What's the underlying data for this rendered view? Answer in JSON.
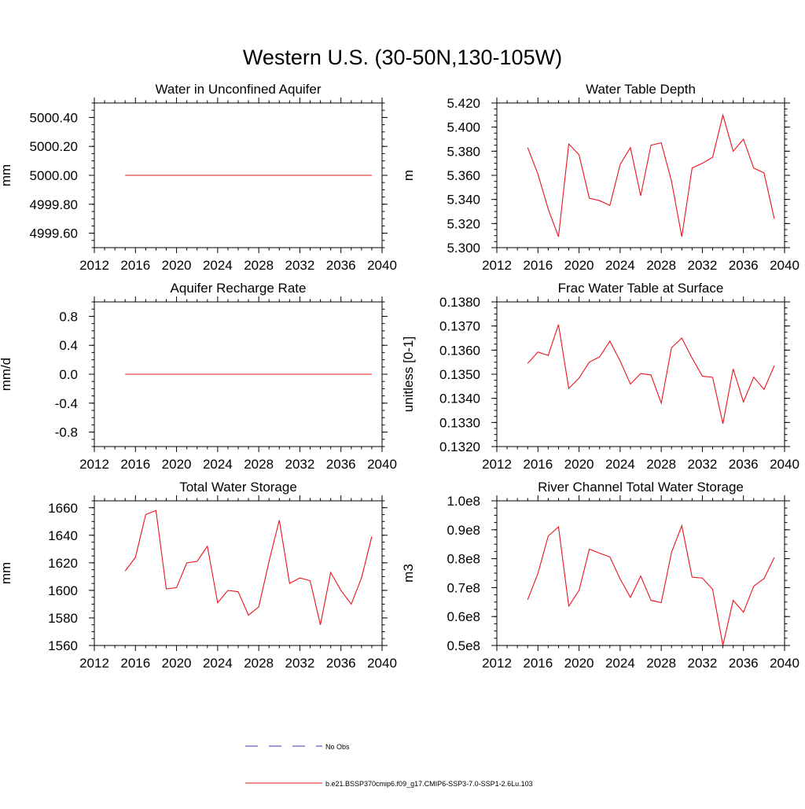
{
  "page_title": "Western U.S. (30-50N,130-105W)",
  "legend": {
    "placement": "bottom-center",
    "entries": [
      {
        "label": "No Obs",
        "color": "#3a3aa8",
        "style": "dashed"
      },
      {
        "label": "b.e21.BSSP370cmip6.f09_g17.CMIP6-SSP3-7.0-SSP1-2.6Lu.103",
        "color": "#e8141e",
        "style": "solid"
      }
    ]
  },
  "chart_data": [
    {
      "type": "line",
      "title": "Water in Unconfined Aquifer",
      "xlabel": "",
      "ylabel": "mm",
      "xlim": [
        2012,
        2040
      ],
      "ylim": [
        4999.5,
        5000.5
      ],
      "xticks": [
        2012,
        2016,
        2020,
        2024,
        2028,
        2032,
        2036,
        2040
      ],
      "xtick_labels": [
        "2012",
        "2016",
        "2020",
        "2024",
        "2028",
        "2032",
        "2036",
        "2040"
      ],
      "yticks": [
        4999.6,
        4999.8,
        5000.0,
        5000.2,
        5000.4
      ],
      "ytick_labels": [
        "4999.60",
        "4999.80",
        "5000.00",
        "5000.20",
        "5000.40"
      ],
      "grid": false,
      "series": [
        {
          "color": "#e8141e",
          "x": [
            2015,
            2016,
            2017,
            2018,
            2019,
            2020,
            2021,
            2022,
            2023,
            2024,
            2025,
            2026,
            2027,
            2028,
            2029,
            2030,
            2031,
            2032,
            2033,
            2034,
            2035,
            2036,
            2037,
            2038,
            2039
          ],
          "values": [
            5000,
            5000,
            5000,
            5000,
            5000,
            5000,
            5000,
            5000,
            5000,
            5000,
            5000,
            5000,
            5000,
            5000,
            5000,
            5000,
            5000,
            5000,
            5000,
            5000,
            5000,
            5000,
            5000,
            5000,
            5000
          ]
        }
      ]
    },
    {
      "type": "line",
      "title": "Water Table Depth",
      "xlabel": "",
      "ylabel": "m",
      "xlim": [
        2012,
        2040
      ],
      "ylim": [
        5.3,
        5.42
      ],
      "xticks": [
        2012,
        2016,
        2020,
        2024,
        2028,
        2032,
        2036,
        2040
      ],
      "xtick_labels": [
        "2012",
        "2016",
        "2020",
        "2024",
        "2028",
        "2032",
        "2036",
        "2040"
      ],
      "yticks": [
        5.3,
        5.32,
        5.34,
        5.36,
        5.38,
        5.4,
        5.42
      ],
      "ytick_labels": [
        "5.300",
        "5.320",
        "5.340",
        "5.360",
        "5.380",
        "5.400",
        "5.420"
      ],
      "grid": false,
      "series": [
        {
          "color": "#e8141e",
          "x": [
            2015,
            2016,
            2017,
            2018,
            2019,
            2020,
            2021,
            2022,
            2023,
            2024,
            2025,
            2026,
            2027,
            2028,
            2029,
            2030,
            2031,
            2032,
            2033,
            2034,
            2035,
            2036,
            2037,
            2038,
            2039
          ],
          "values": [
            5.383,
            5.361,
            5.332,
            5.309,
            5.386,
            5.377,
            5.341,
            5.339,
            5.335,
            5.369,
            5.383,
            5.343,
            5.385,
            5.387,
            5.355,
            5.309,
            5.366,
            5.37,
            5.375,
            5.41,
            5.38,
            5.39,
            5.366,
            5.362,
            5.324
          ]
        }
      ]
    },
    {
      "type": "line",
      "title": "Aquifer Recharge Rate",
      "xlabel": "",
      "ylabel": "mm/d",
      "xlim": [
        2012,
        2040
      ],
      "ylim": [
        -1.0,
        1.0
      ],
      "xticks": [
        2012,
        2016,
        2020,
        2024,
        2028,
        2032,
        2036,
        2040
      ],
      "xtick_labels": [
        "2012",
        "2016",
        "2020",
        "2024",
        "2028",
        "2032",
        "2036",
        "2040"
      ],
      "yticks": [
        -0.8,
        -0.4,
        0.0,
        0.4,
        0.8
      ],
      "ytick_labels": [
        "-0.8",
        "-0.4",
        "0.0",
        "0.4",
        "0.8"
      ],
      "grid": false,
      "series": [
        {
          "color": "#e8141e",
          "x": [
            2015,
            2016,
            2017,
            2018,
            2019,
            2020,
            2021,
            2022,
            2023,
            2024,
            2025,
            2026,
            2027,
            2028,
            2029,
            2030,
            2031,
            2032,
            2033,
            2034,
            2035,
            2036,
            2037,
            2038,
            2039
          ],
          "values": [
            0,
            0,
            0,
            0,
            0,
            0,
            0,
            0,
            0,
            0,
            0,
            0,
            0,
            0,
            0,
            0,
            0,
            0,
            0,
            0,
            0,
            0,
            0,
            0,
            0
          ]
        }
      ]
    },
    {
      "type": "line",
      "title": "Frac Water Table at Surface",
      "xlabel": "",
      "ylabel": "unitless [0-1]",
      "xlim": [
        2012,
        2040
      ],
      "ylim": [
        0.132,
        0.138
      ],
      "xticks": [
        2012,
        2016,
        2020,
        2024,
        2028,
        2032,
        2036,
        2040
      ],
      "xtick_labels": [
        "2012",
        "2016",
        "2020",
        "2024",
        "2028",
        "2032",
        "2036",
        "2040"
      ],
      "yticks": [
        0.132,
        0.133,
        0.134,
        0.135,
        0.136,
        0.137,
        0.138
      ],
      "ytick_labels": [
        "0.1320",
        "0.1330",
        "0.1340",
        "0.1350",
        "0.1360",
        "0.1370",
        "0.1380"
      ],
      "grid": false,
      "series": [
        {
          "color": "#e8141e",
          "x": [
            2015,
            2016,
            2017,
            2018,
            2019,
            2020,
            2021,
            2022,
            2023,
            2024,
            2025,
            2026,
            2027,
            2028,
            2029,
            2030,
            2031,
            2032,
            2033,
            2034,
            2035,
            2036,
            2037,
            2038,
            2039
          ],
          "values": [
            0.13545,
            0.13592,
            0.13578,
            0.13706,
            0.13441,
            0.13484,
            0.1355,
            0.13572,
            0.13637,
            0.13555,
            0.13459,
            0.13503,
            0.13497,
            0.1338,
            0.1361,
            0.1365,
            0.13567,
            0.13492,
            0.13487,
            0.13295,
            0.13522,
            0.13385,
            0.13488,
            0.13437,
            0.13535
          ]
        }
      ]
    },
    {
      "type": "line",
      "title": "Total Water Storage",
      "xlabel": "",
      "ylabel": "mm",
      "xlim": [
        2012,
        2040
      ],
      "ylim": [
        1560,
        1665
      ],
      "xticks": [
        2012,
        2016,
        2020,
        2024,
        2028,
        2032,
        2036,
        2040
      ],
      "xtick_labels": [
        "2012",
        "2016",
        "2020",
        "2024",
        "2028",
        "2032",
        "2036",
        "2040"
      ],
      "yticks": [
        1560,
        1580,
        1600,
        1620,
        1640,
        1660
      ],
      "ytick_labels": [
        "1560",
        "1580",
        "1600",
        "1620",
        "1640",
        "1660"
      ],
      "grid": false,
      "series": [
        {
          "color": "#e8141e",
          "x": [
            2015,
            2016,
            2017,
            2018,
            2019,
            2020,
            2021,
            2022,
            2023,
            2024,
            2025,
            2026,
            2027,
            2028,
            2029,
            2030,
            2031,
            2032,
            2033,
            2034,
            2035,
            2036,
            2037,
            2038,
            2039
          ],
          "values": [
            1614,
            1624,
            1655,
            1658,
            1601,
            1602,
            1620,
            1621,
            1632,
            1591,
            1600,
            1599,
            1582,
            1588,
            1621,
            1651,
            1605,
            1609,
            1607,
            1575,
            1613,
            1600,
            1590,
            1609,
            1639
          ]
        }
      ]
    },
    {
      "type": "line",
      "title": "River Channel Total Water Storage",
      "xlabel": "",
      "ylabel": "m3",
      "xlim": [
        2012,
        2040
      ],
      "ylim": [
        50000000.0,
        100000000.0
      ],
      "xticks": [
        2012,
        2016,
        2020,
        2024,
        2028,
        2032,
        2036,
        2040
      ],
      "xtick_labels": [
        "2012",
        "2016",
        "2020",
        "2024",
        "2028",
        "2032",
        "2036",
        "2040"
      ],
      "yticks": [
        50000000.0,
        60000000.0,
        70000000.0,
        80000000.0,
        90000000.0,
        100000000.0
      ],
      "ytick_labels": [
        "0.5e8",
        "0.6e8",
        "0.7e8",
        "0.8e8",
        "0.9e8",
        "1.0e8"
      ],
      "grid": false,
      "series": [
        {
          "color": "#e8141e",
          "x": [
            2015,
            2016,
            2017,
            2018,
            2019,
            2020,
            2021,
            2022,
            2023,
            2024,
            2025,
            2026,
            2027,
            2028,
            2029,
            2030,
            2031,
            2032,
            2033,
            2034,
            2035,
            2036,
            2037,
            2038,
            2039
          ],
          "values": [
            65800000.0,
            74900000.0,
            87800000.0,
            91000000.0,
            63600000.0,
            69000000.0,
            83300000.0,
            81900000.0,
            80600000.0,
            73000000.0,
            66600000.0,
            74000000.0,
            65600000.0,
            64800000.0,
            82200000.0,
            91400000.0,
            73600000.0,
            73300000.0,
            69400000.0,
            50000000.0,
            65600000.0,
            61500000.0,
            70500000.0,
            73100000.0,
            80400000.0
          ]
        }
      ]
    }
  ]
}
